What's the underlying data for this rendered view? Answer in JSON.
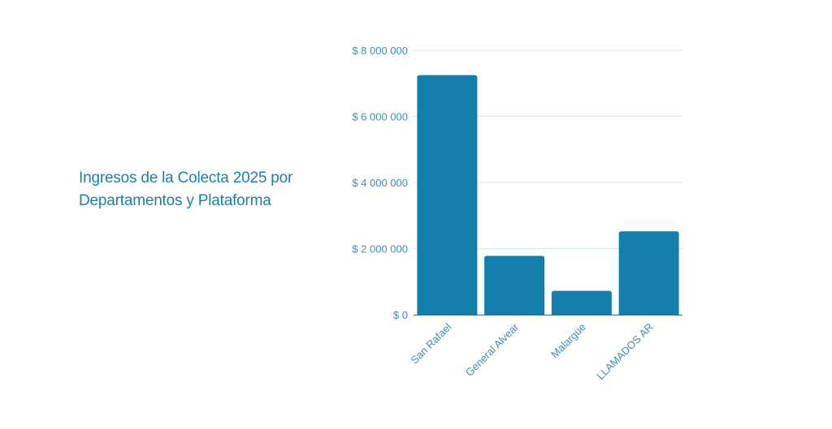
{
  "title_line1": "Ingresos de la Colecta 2025 por",
  "title_line2": "Departamentos y Plataforma",
  "colors": {
    "bar": "#157fac",
    "text": "#1a7fab",
    "axis_label": "#3d8eb9",
    "grid": "#d6e7ef",
    "axis": "#2b6d8e"
  },
  "chart_data": {
    "type": "bar",
    "categories": [
      "San Rafael",
      "General Alvear",
      "Malargüe",
      "LLAMADOS AR"
    ],
    "values": [
      7250000,
      1780000,
      720000,
      2520000
    ],
    "ylim": [
      0,
      8000000
    ],
    "yticks": [
      0,
      2000000,
      4000000,
      6000000,
      8000000
    ],
    "ytick_labels": [
      "$ 0",
      "$ 2 000 000",
      "$ 4 000 000",
      "$ 6 000 000",
      "$ 8 000 000"
    ],
    "grid": true,
    "legend": "none"
  }
}
